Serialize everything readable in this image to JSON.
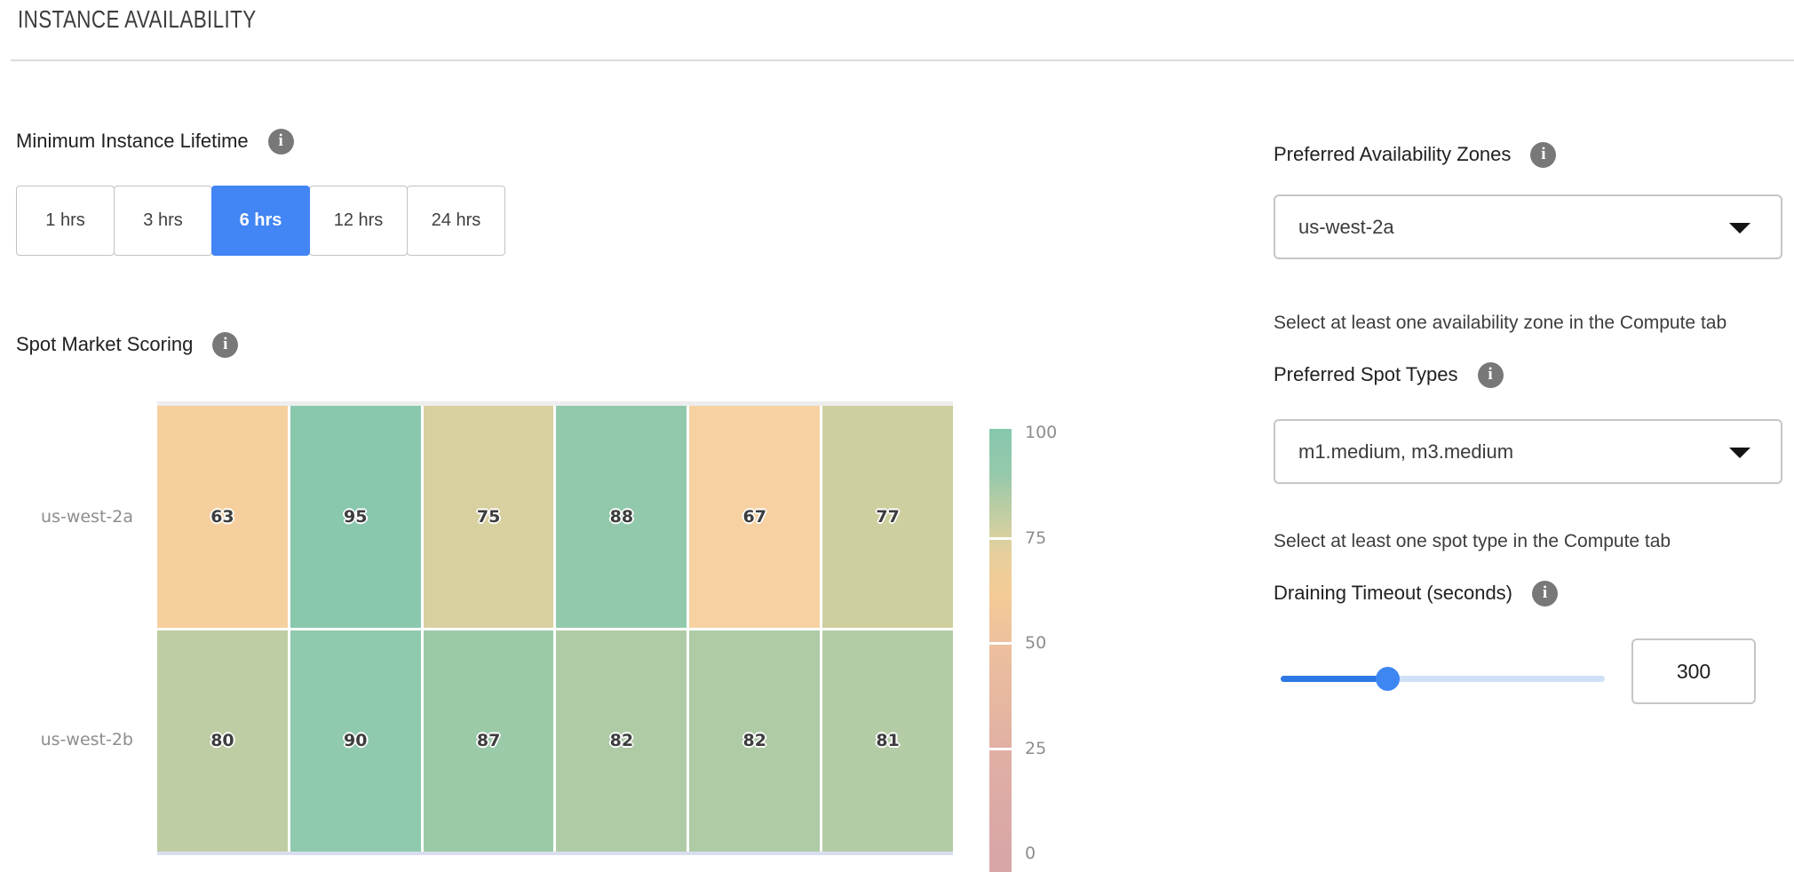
{
  "header": {
    "title": "INSTANCE AVAILABILITY"
  },
  "left_panel": {
    "lifetime": {
      "label": "Minimum Instance Lifetime",
      "options": [
        {
          "label": "1 hrs",
          "selected": false
        },
        {
          "label": "3 hrs",
          "selected": false
        },
        {
          "label": "6 hrs",
          "selected": true
        },
        {
          "label": "12 hrs",
          "selected": false
        },
        {
          "label": "24 hrs",
          "selected": false
        }
      ],
      "selected_color": "#4285f4"
    },
    "scoring": {
      "label": "Spot Market Scoring"
    }
  },
  "chart_data": {
    "type": "heatmap",
    "title": "Spot Market Scoring",
    "rows": [
      "us-west-2a",
      "us-west-2b"
    ],
    "num_columns": 6,
    "column_labels_visible": false,
    "series": [
      {
        "name": "us-west-2a",
        "values": [
          63,
          95,
          75,
          88,
          67,
          77
        ]
      },
      {
        "name": "us-west-2b",
        "values": [
          80,
          90,
          87,
          82,
          82,
          81
        ]
      }
    ],
    "cell_colors": [
      [
        "#f6cf9e",
        "#8ac8ae",
        "#d9d0a0",
        "#92c9ac",
        "#f7d1a2",
        "#cdcf9f"
      ],
      [
        "#bfcda4",
        "#8fc9ae",
        "#9bcaa9",
        "#aecba6",
        "#aecba6",
        "#b3cca5"
      ]
    ],
    "value_text_color": "#3d3d3d",
    "axis_label_color": "#8d8d8d",
    "colorbar": {
      "min": 0,
      "max": 100,
      "ticks": [
        100,
        75,
        50,
        25,
        0
      ],
      "gap_ticks": [
        75,
        50,
        25
      ],
      "gradient": [
        {
          "at": 100,
          "color": "#87c7ae"
        },
        {
          "at": 90,
          "color": "#96c9ab"
        },
        {
          "at": 83,
          "color": "#b6cca4"
        },
        {
          "at": 75,
          "color": "#d8d0a0"
        },
        {
          "at": 70,
          "color": "#e8cf9c"
        },
        {
          "at": 62,
          "color": "#f5cb96"
        },
        {
          "at": 50,
          "color": "#edc09e"
        },
        {
          "at": 25,
          "color": "#e1b0a3"
        },
        {
          "at": 0,
          "color": "#d9a6a8"
        }
      ]
    }
  },
  "right_panel": {
    "zones": {
      "label": "Preferred Availability Zones",
      "value": "us-west-2a",
      "helper": "Select at least one availability zone in the Compute tab"
    },
    "spot_types": {
      "label": "Preferred Spot Types",
      "value": "m1.medium, m3.medium",
      "helper": "Select at least one spot type in the Compute tab"
    },
    "draining": {
      "label": "Draining Timeout (seconds)",
      "value": "300",
      "slider_percent": 33,
      "slider_fill_color": "#2d78e2",
      "slider_rest_color": "#cfe0f7",
      "slider_thumb_color": "#3e87f2"
    }
  },
  "info_icon_glyph": "i"
}
